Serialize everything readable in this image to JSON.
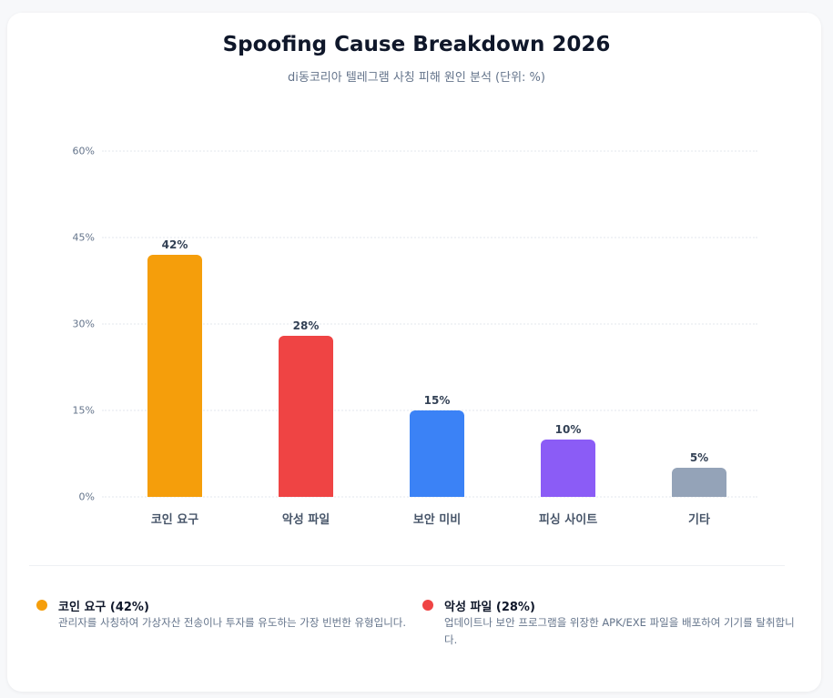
{
  "header": {
    "title": "Spoofing Cause Breakdown 2026",
    "subtitle": "di동코리아 텔레그램 사칭 피해 원인 분석 (단위: %)"
  },
  "axis": {
    "y_ticks": [
      "60%",
      "45%",
      "30%",
      "15%",
      "0%"
    ]
  },
  "bars": [
    {
      "label": "코인 요구",
      "value_label": "42%",
      "color": "#f59e0b"
    },
    {
      "label": "악성 파일",
      "value_label": "28%",
      "color": "#ef4444"
    },
    {
      "label": "보안 미비",
      "value_label": "15%",
      "color": "#3b82f6"
    },
    {
      "label": "피싱 사이트",
      "value_label": "10%",
      "color": "#8b5cf6"
    },
    {
      "label": "기타",
      "value_label": "5%",
      "color": "#94a3b8"
    }
  ],
  "legend": [
    {
      "title": "코인 요구 (42%)",
      "desc": "관리자를 사칭하여 가상자산 전송이나 투자를 유도하는 가장 빈번한 유형입니다.",
      "color": "#f59e0b"
    },
    {
      "title": "악성 파일 (28%)",
      "desc": "업데이트나 보안 프로그램을 위장한 APK/EXE 파일을 배포하여 기기를 탈취합니다.",
      "color": "#ef4444"
    }
  ],
  "chart_data": {
    "type": "bar",
    "title": "Spoofing Cause Breakdown 2026",
    "subtitle": "di동코리아 텔레그램 사칭 피해 원인 분석 (단위: %)",
    "categories": [
      "코인 요구",
      "악성 파일",
      "보안 미비",
      "피싱 사이트",
      "기타"
    ],
    "values": [
      42,
      28,
      15,
      10,
      5
    ],
    "colors": [
      "#f59e0b",
      "#ef4444",
      "#3b82f6",
      "#8b5cf6",
      "#94a3b8"
    ],
    "xlabel": "",
    "ylabel": "",
    "ylim": [
      0,
      60
    ],
    "y_ticks": [
      0,
      15,
      30,
      45,
      60
    ],
    "grid": true,
    "data_labels": true,
    "legend_position": "bottom"
  }
}
